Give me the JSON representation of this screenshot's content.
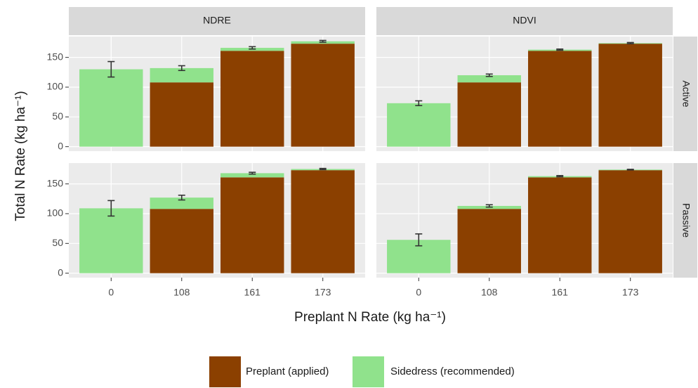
{
  "chart_data": {
    "type": "bar",
    "stacked": true,
    "x_label": "Preplant N Rate (kg ha⁻¹)",
    "y_label": "Total N Rate (kg ha⁻¹)",
    "columns": [
      "NDRE",
      "NDVI"
    ],
    "rows": [
      "Active",
      "Passive"
    ],
    "categories": [
      "0",
      "108",
      "161",
      "173"
    ],
    "ylim": [
      -7.5,
      185
    ],
    "yticks": [
      0,
      50,
      100,
      150
    ],
    "grid": true,
    "series": [
      {
        "name": "Preplant (applied)",
        "color": "#8B4000",
        "values": [
          [
            [
              0,
              108,
              161,
              173
            ],
            [
              0,
              108,
              161,
              173
            ]
          ],
          [
            [
              0,
              108,
              161,
              173
            ],
            [
              0,
              108,
              161,
              173
            ]
          ]
        ]
      },
      {
        "name": "Sidedress (recommended)",
        "color": "#90E28C",
        "values": [
          [
            [
              130,
              24,
              5,
              4
            ],
            [
              73,
              12,
              2,
              1
            ]
          ],
          [
            [
              109,
              19,
              7,
              2
            ],
            [
              56,
              5,
              2,
              1
            ]
          ]
        ]
      }
    ],
    "errors": [
      [
        [
          13,
          4,
          2,
          1.5
        ],
        [
          4,
          2,
          1,
          1
        ]
      ],
      [
        [
          13,
          4,
          1.5,
          1
        ],
        [
          10,
          2,
          1,
          0.5
        ]
      ]
    ],
    "legend": "bottom"
  }
}
